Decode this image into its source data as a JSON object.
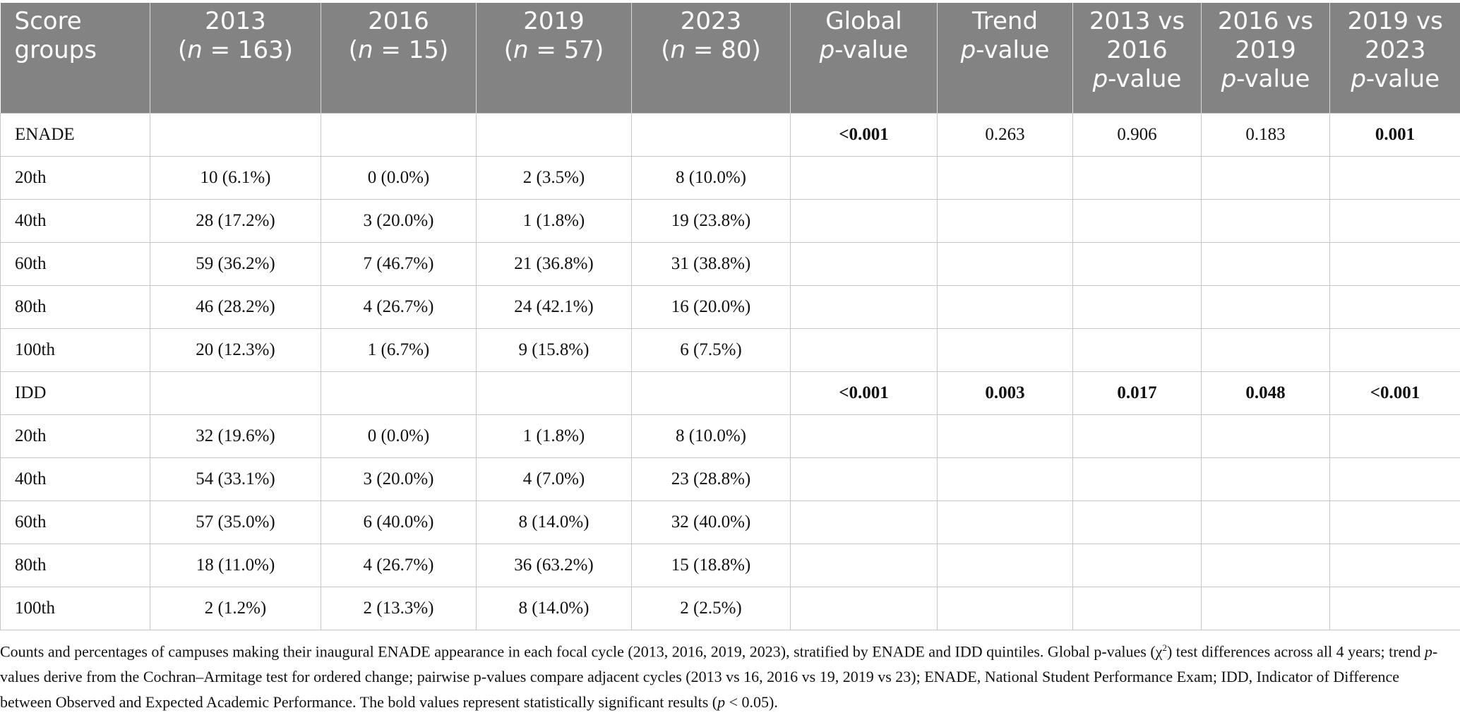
{
  "table": {
    "headers": [
      {
        "lines": [
          {
            "text": "Score",
            "italic": false
          },
          {
            "text": "groups",
            "italic": false
          }
        ]
      },
      {
        "lines": [
          {
            "text": "2013",
            "italic": false
          },
          {
            "parts": [
              {
                "t": "(",
                "i": false
              },
              {
                "t": "n",
                "i": true
              },
              {
                "t": " = 163)",
                "i": false
              }
            ]
          }
        ]
      },
      {
        "lines": [
          {
            "text": "2016",
            "italic": false
          },
          {
            "parts": [
              {
                "t": "(",
                "i": false
              },
              {
                "t": "n",
                "i": true
              },
              {
                "t": " = 15)",
                "i": false
              }
            ]
          }
        ]
      },
      {
        "lines": [
          {
            "text": "2019",
            "italic": false
          },
          {
            "parts": [
              {
                "t": "(",
                "i": false
              },
              {
                "t": "n",
                "i": true
              },
              {
                "t": " = 57)",
                "i": false
              }
            ]
          }
        ]
      },
      {
        "lines": [
          {
            "text": "2023",
            "italic": false
          },
          {
            "parts": [
              {
                "t": "(",
                "i": false
              },
              {
                "t": "n",
                "i": true
              },
              {
                "t": " = 80)",
                "i": false
              }
            ]
          }
        ]
      },
      {
        "lines": [
          {
            "text": "Global",
            "italic": false
          },
          {
            "parts": [
              {
                "t": "p",
                "i": true
              },
              {
                "t": "-value",
                "i": false
              }
            ]
          }
        ]
      },
      {
        "lines": [
          {
            "text": "Trend",
            "italic": false
          },
          {
            "parts": [
              {
                "t": "p",
                "i": true
              },
              {
                "t": "-value",
                "i": false
              }
            ]
          }
        ]
      },
      {
        "lines": [
          {
            "text": "2013 vs",
            "italic": false
          },
          {
            "text": "2016",
            "italic": false
          },
          {
            "parts": [
              {
                "t": "p",
                "i": true
              },
              {
                "t": "-value",
                "i": false
              }
            ]
          }
        ]
      },
      {
        "lines": [
          {
            "text": "2016 vs",
            "italic": false
          },
          {
            "text": "2019",
            "italic": false
          },
          {
            "parts": [
              {
                "t": "p",
                "i": true
              },
              {
                "t": "-value",
                "i": false
              }
            ]
          }
        ]
      },
      {
        "lines": [
          {
            "text": "2019 vs",
            "italic": false
          },
          {
            "text": "2023",
            "italic": false
          },
          {
            "parts": [
              {
                "t": "p",
                "i": true
              },
              {
                "t": "-value",
                "i": false
              }
            ]
          }
        ]
      }
    ],
    "rows": [
      {
        "cells": [
          "ENADE",
          "",
          "",
          "",
          "",
          "<0.001",
          "0.263",
          "0.906",
          "0.183",
          "0.001"
        ],
        "bold": [
          5,
          9
        ]
      },
      {
        "cells": [
          "20th",
          "10 (6.1%)",
          "0 (0.0%)",
          "2 (3.5%)",
          "8 (10.0%)",
          "",
          "",
          "",
          "",
          ""
        ],
        "bold": []
      },
      {
        "cells": [
          "40th",
          "28 (17.2%)",
          "3 (20.0%)",
          "1 (1.8%)",
          "19 (23.8%)",
          "",
          "",
          "",
          "",
          ""
        ],
        "bold": []
      },
      {
        "cells": [
          "60th",
          "59 (36.2%)",
          "7 (46.7%)",
          "21 (36.8%)",
          "31 (38.8%)",
          "",
          "",
          "",
          "",
          ""
        ],
        "bold": []
      },
      {
        "cells": [
          "80th",
          "46 (28.2%)",
          "4 (26.7%)",
          "24 (42.1%)",
          "16 (20.0%)",
          "",
          "",
          "",
          "",
          ""
        ],
        "bold": []
      },
      {
        "cells": [
          "100th",
          "20 (12.3%)",
          "1 (6.7%)",
          "9 (15.8%)",
          "6 (7.5%)",
          "",
          "",
          "",
          "",
          ""
        ],
        "bold": []
      },
      {
        "cells": [
          "IDD",
          "",
          "",
          "",
          "",
          "<0.001",
          "0.003",
          "0.017",
          "0.048",
          "<0.001"
        ],
        "bold": [
          5,
          6,
          7,
          8,
          9
        ]
      },
      {
        "cells": [
          "20th",
          "32 (19.6%)",
          "0 (0.0%)",
          "1 (1.8%)",
          "8 (10.0%)",
          "",
          "",
          "",
          "",
          ""
        ],
        "bold": []
      },
      {
        "cells": [
          "40th",
          "54 (33.1%)",
          "3 (20.0%)",
          "4 (7.0%)",
          "23 (28.8%)",
          "",
          "",
          "",
          "",
          ""
        ],
        "bold": []
      },
      {
        "cells": [
          "60th",
          "57 (35.0%)",
          "6 (40.0%)",
          "8 (14.0%)",
          "32 (40.0%)",
          "",
          "",
          "",
          "",
          ""
        ],
        "bold": []
      },
      {
        "cells": [
          "80th",
          "18 (11.0%)",
          "4 (26.7%)",
          "36 (63.2%)",
          "15 (18.8%)",
          "",
          "",
          "",
          "",
          ""
        ],
        "bold": []
      },
      {
        "cells": [
          "100th",
          "2 (1.2%)",
          "2 (13.3%)",
          "8 (14.0%)",
          "2 (2.5%)",
          "",
          "",
          "",
          "",
          ""
        ],
        "bold": []
      }
    ]
  },
  "caption": {
    "segments": [
      {
        "t": "Counts and percentages of campuses making their inaugural ENADE appearance in each focal cycle (2013, 2016, 2019, 2023), stratified by ENADE and IDD quintiles. Global p-values (χ",
        "i": false
      },
      {
        "t": "2",
        "sup": true
      },
      {
        "t": ") test differences across all 4 years; trend ",
        "i": false
      },
      {
        "t": "p",
        "i": true
      },
      {
        "t": "-values derive from the Cochran–Armitage test for ordered change; pairwise p-values compare adjacent cycles (2013 vs 16, 2016 vs 19, 2019 vs 23); ENADE, National Student Performance Exam; IDD, Indicator of Difference between Observed and Expected Academic Performance. The bold values represent statistically significant results (",
        "i": false
      },
      {
        "t": "p",
        "i": true
      },
      {
        "t": " < 0.05).",
        "i": false
      }
    ]
  }
}
